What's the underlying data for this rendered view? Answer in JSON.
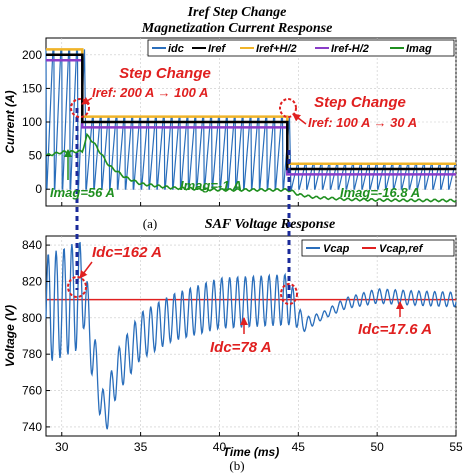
{
  "figure": {
    "title_line1": "Iref Step Change",
    "title_line2": "Magnetization Current Response",
    "panel_a": "(a)",
    "panel_b": "(b)"
  },
  "colors": {
    "idc": "#2a6ebb",
    "iref": "#000000",
    "iref_band_upper": "#f0b429",
    "iref_band_lower": "#8a3cc8",
    "imag": "#1f8f1f",
    "vcap": "#2a6ebb",
    "vcap_ref": "#e02020",
    "annotation_red": "#e02020",
    "annotation_green": "#1f8f1f",
    "marker_dash": "#1a2a9a"
  },
  "chart_data": [
    {
      "type": "line",
      "title": "Iref Step Change / Magnetization Current Response",
      "xlabel": "",
      "ylabel": "Current (A)",
      "xlim": [
        29,
        55
      ],
      "ylim": [
        -25,
        225
      ],
      "xticks": [
        "30",
        "35",
        "40",
        "45",
        "50",
        "55"
      ],
      "yticks": [
        "0",
        "50",
        "100",
        "150",
        "200"
      ],
      "grid": true,
      "legend_position": "top-right",
      "series": [
        {
          "name": "idc",
          "shape": "switching ripple between 0 A and Iref+H/2"
        },
        {
          "name": "Iref",
          "x": [
            29,
            31.3,
            31.3,
            44.3,
            44.3,
            55
          ],
          "y": [
            200,
            200,
            100,
            100,
            30,
            30
          ]
        },
        {
          "name": "Iref+H/2",
          "x": [
            29,
            31.3,
            31.3,
            44.3,
            44.3,
            55
          ],
          "y": [
            208,
            208,
            108,
            108,
            38,
            38
          ]
        },
        {
          "name": "Iref-H/2",
          "x": [
            29,
            31.3,
            31.3,
            44.3,
            44.3,
            55
          ],
          "y": [
            192,
            192,
            92,
            92,
            22,
            22
          ]
        },
        {
          "name": "Imag",
          "x": [
            29,
            30,
            31,
            31.3,
            31.6,
            32,
            33,
            34,
            35,
            37,
            40,
            44.3,
            44.6,
            45,
            46,
            48,
            50,
            52,
            55
          ],
          "y": [
            50,
            55,
            56,
            56,
            80,
            70,
            35,
            18,
            8,
            2,
            -1,
            -1,
            -3,
            -8,
            -12,
            -15,
            -16,
            -16.5,
            -16.8
          ]
        }
      ],
      "annotations": [
        {
          "text": "Step Change",
          "color": "red"
        },
        {
          "text": "Iref: 200 A → 100 A",
          "color": "red"
        },
        {
          "text": "Step Change",
          "color": "red"
        },
        {
          "text": "Iref: 100 A → 30 A",
          "color": "red"
        },
        {
          "text": "Imag=56 A",
          "color": "green"
        },
        {
          "text": "Imag=-1 A",
          "color": "green"
        },
        {
          "text": "Imag=-16.8 A",
          "color": "green"
        }
      ]
    },
    {
      "type": "line",
      "title": "SAF Voltage Response",
      "xlabel": "Time (ms)",
      "ylabel": "Voltage (V)",
      "xlim": [
        29,
        55
      ],
      "ylim": [
        735,
        845
      ],
      "xticks": [
        "30",
        "35",
        "40",
        "45",
        "50",
        "55"
      ],
      "yticks": [
        "740",
        "760",
        "780",
        "800",
        "820",
        "840"
      ],
      "grid": true,
      "legend_position": "top-right",
      "series": [
        {
          "name": "Vcap",
          "envelope_x": [
            29,
            30,
            31,
            31.4,
            31.7,
            32.2,
            32.7,
            33.5,
            35,
            37,
            40,
            44.3,
            44.7,
            45.3,
            46.5,
            48,
            50,
            52,
            55
          ],
          "envelope_mean": [
            805,
            808,
            812,
            818,
            795,
            770,
            745,
            770,
            790,
            800,
            808,
            810,
            806,
            796,
            801,
            808,
            812,
            811,
            810
          ],
          "ripple_amplitude": [
            30,
            30,
            30,
            24,
            18,
            14,
            12,
            12,
            13,
            13,
            14,
            14,
            10,
            4,
            2,
            3,
            4,
            4,
            4
          ]
        },
        {
          "name": "Vcap,ref",
          "x": [
            29,
            55
          ],
          "y": [
            810,
            810
          ]
        }
      ],
      "annotations": [
        {
          "text": "Idc=162 A",
          "color": "red"
        },
        {
          "text": "Idc=78 A",
          "color": "red"
        },
        {
          "text": "Idc=17.6 A",
          "color": "red"
        }
      ]
    }
  ]
}
